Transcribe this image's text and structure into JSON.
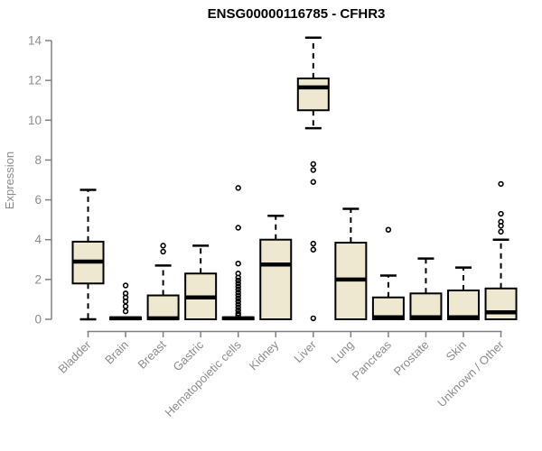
{
  "page": {
    "background": "#ffffff"
  },
  "chart_data": {
    "type": "boxplot",
    "title": "ENSG00000116785 - CFHR3",
    "xlabel": "",
    "ylabel": "Expression",
    "ylim": [
      0,
      14
    ],
    "yticks": [
      0,
      2,
      4,
      6,
      8,
      10,
      12,
      14
    ],
    "grid": false,
    "legend": "none",
    "categories": [
      "Bladder",
      "Brain",
      "Breast",
      "Gastric",
      "Hematopoietic cells",
      "Kidney",
      "Liver",
      "Lung",
      "Pancreas",
      "Prostate",
      "Skin",
      "Unknown / Other"
    ],
    "boxes": [
      {
        "category": "Bladder",
        "whisker_low": 0,
        "q1": 1.8,
        "median": 2.9,
        "q3": 3.9,
        "whisker_high": 6.5,
        "outliers": []
      },
      {
        "category": "Brain",
        "whisker_low": 0,
        "q1": 0,
        "median": 0.05,
        "q3": 0.1,
        "whisker_high": 0.1,
        "outliers": [
          1.7,
          1.3,
          1.1,
          0.9,
          0.65,
          0.4
        ]
      },
      {
        "category": "Breast",
        "whisker_low": 0,
        "q1": 0,
        "median": 0.05,
        "q3": 1.2,
        "whisker_high": 2.7,
        "outliers": [
          3.7,
          3.4
        ]
      },
      {
        "category": "Gastric",
        "whisker_low": 0,
        "q1": 0,
        "median": 1.1,
        "q3": 2.3,
        "whisker_high": 3.7,
        "outliers": []
      },
      {
        "category": "Hematopoietic cells",
        "whisker_low": 0,
        "q1": 0,
        "median": 0.05,
        "q3": 0.1,
        "whisker_high": 0.1,
        "outliers": [
          6.6,
          4.6,
          2.8,
          2.3,
          2.1,
          1.95,
          1.8,
          1.65,
          1.5,
          1.35,
          1.2,
          1.05,
          0.9,
          0.75,
          0.6,
          0.45,
          0.3,
          0.2
        ]
      },
      {
        "category": "Kidney",
        "whisker_low": 0,
        "q1": 0,
        "median": 2.75,
        "q3": 4.0,
        "whisker_high": 5.2,
        "outliers": []
      },
      {
        "category": "Liver",
        "whisker_low": 9.6,
        "q1": 10.5,
        "median": 11.65,
        "q3": 12.1,
        "whisker_high": 14.15,
        "outliers": [
          7.8,
          7.5,
          6.9,
          3.8,
          3.5,
          0.05
        ]
      },
      {
        "category": "Lung",
        "whisker_low": 0,
        "q1": 0,
        "median": 2.0,
        "q3": 3.85,
        "whisker_high": 5.55,
        "outliers": []
      },
      {
        "category": "Pancreas",
        "whisker_low": 0,
        "q1": 0,
        "median": 0.1,
        "q3": 1.1,
        "whisker_high": 2.2,
        "outliers": [
          4.5
        ]
      },
      {
        "category": "Prostate",
        "whisker_low": 0,
        "q1": 0,
        "median": 0.1,
        "q3": 1.3,
        "whisker_high": 3.05,
        "outliers": []
      },
      {
        "category": "Skin",
        "whisker_low": 0,
        "q1": 0,
        "median": 0.1,
        "q3": 1.45,
        "whisker_high": 2.6,
        "outliers": []
      },
      {
        "category": "Unknown / Other",
        "whisker_low": 0,
        "q1": 0,
        "median": 0.35,
        "q3": 1.55,
        "whisker_high": 4.0,
        "outliers": [
          6.8,
          5.3,
          4.9,
          4.7,
          4.4
        ]
      }
    ],
    "style": {
      "box_fill": "#ede8cf",
      "box_stroke": "#000000",
      "median_color": "#000000",
      "whisker_style": "dashed",
      "outlier_marker": "open-circle",
      "axis_color": "#808080",
      "tick_label_color": "#8c8c8c",
      "title_color": "#000000"
    }
  }
}
